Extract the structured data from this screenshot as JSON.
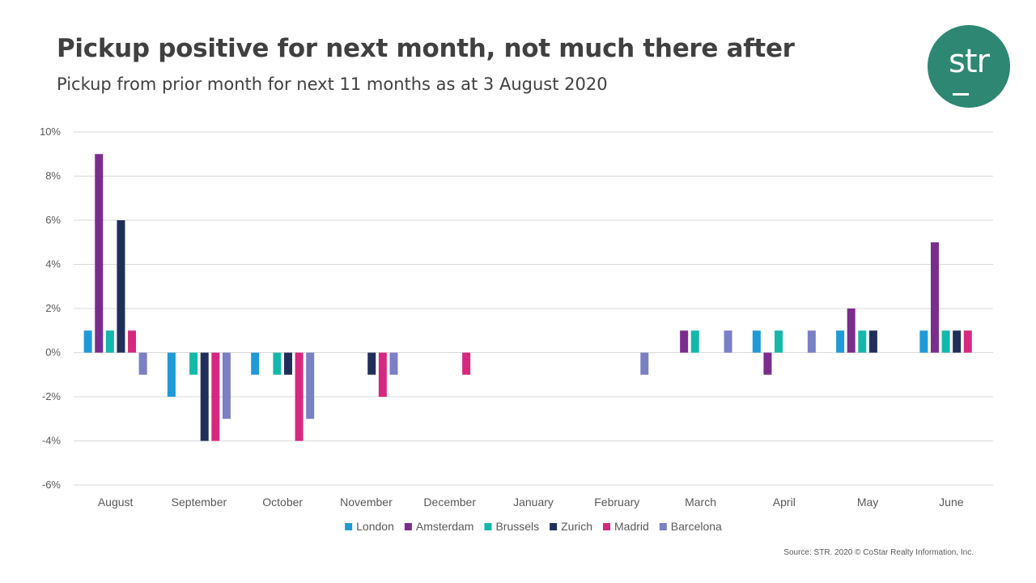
{
  "title": "Pickup positive for next month, not much there after",
  "subtitle": "Pickup from prior month for next 11 months as at 3 August 2020",
  "logo": {
    "text": "str",
    "color": "#2d8772"
  },
  "source": "Source: STR. 2020 © CoStar Realty Information, Inc.",
  "chart_data": {
    "type": "bar",
    "title": "Pickup positive for next month, not much there after",
    "xlabel": "",
    "ylabel": "",
    "ylim": [
      -6,
      10
    ],
    "yticks": [
      10,
      8,
      6,
      4,
      2,
      0,
      -2,
      -4,
      -6
    ],
    "ytick_labels": [
      "10%",
      "8%",
      "6%",
      "4%",
      "2%",
      "0%",
      "-2%",
      "-4%",
      "-6%"
    ],
    "grid": true,
    "legend_position": "bottom",
    "categories": [
      "August",
      "September",
      "October",
      "November",
      "December",
      "January",
      "February",
      "March",
      "April",
      "May",
      "June"
    ],
    "series": [
      {
        "name": "London",
        "color": "#1f9ad6",
        "values": [
          1,
          -2,
          -1,
          0,
          0,
          0,
          0,
          0,
          1,
          1,
          1
        ]
      },
      {
        "name": "Amsterdam",
        "color": "#7b2d8e",
        "values": [
          9,
          0,
          0,
          0,
          0,
          0,
          0,
          1,
          -1,
          2,
          5
        ]
      },
      {
        "name": "Brussels",
        "color": "#14b8aa",
        "values": [
          1,
          -1,
          -1,
          0,
          0,
          0,
          0,
          1,
          1,
          1,
          1
        ]
      },
      {
        "name": "Zurich",
        "color": "#1f2f5a",
        "values": [
          6,
          -4,
          -1,
          -1,
          0,
          0,
          0,
          0,
          0,
          1,
          1
        ]
      },
      {
        "name": "Madrid",
        "color": "#d6287e",
        "values": [
          1,
          -4,
          -4,
          -2,
          -1,
          0,
          0,
          0,
          0,
          0,
          1
        ]
      },
      {
        "name": "Barcelona",
        "color": "#7b7fc4",
        "values": [
          -1,
          -3,
          -3,
          -1,
          0,
          0,
          -1,
          1,
          1,
          0,
          0
        ]
      }
    ]
  }
}
